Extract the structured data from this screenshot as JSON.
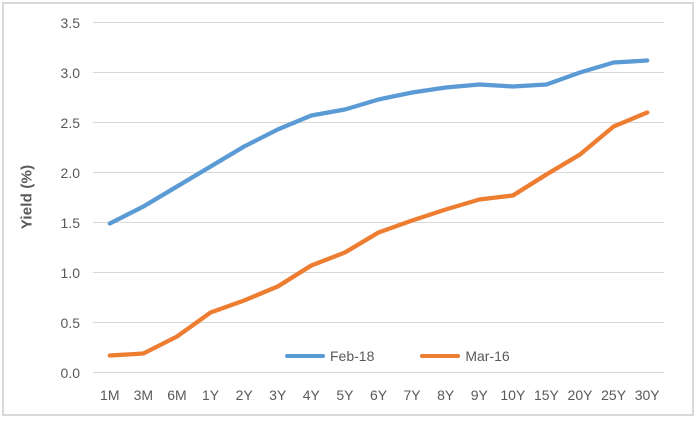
{
  "chart_data": {
    "type": "line",
    "title": "",
    "xlabel": "",
    "ylabel": "Yield (%)",
    "categories": [
      "1M",
      "3M",
      "6M",
      "1Y",
      "2Y",
      "3Y",
      "4Y",
      "5Y",
      "6Y",
      "7Y",
      "8Y",
      "9Y",
      "10Y",
      "15Y",
      "20Y",
      "25Y",
      "30Y"
    ],
    "series": [
      {
        "name": "Feb-18",
        "color": "#5B9BD5",
        "values": [
          1.49,
          1.66,
          1.86,
          2.06,
          2.26,
          2.43,
          2.57,
          2.63,
          2.73,
          2.8,
          2.85,
          2.88,
          2.86,
          2.88,
          3.0,
          3.1,
          3.12
        ]
      },
      {
        "name": "Mar-16",
        "color": "#ED7D31",
        "values": [
          0.17,
          0.19,
          0.36,
          0.6,
          0.72,
          0.86,
          1.07,
          1.2,
          1.4,
          1.52,
          1.63,
          1.73,
          1.77,
          1.98,
          2.18,
          2.46,
          2.6
        ]
      }
    ],
    "ylim": [
      0,
      3.5
    ],
    "ytick_step": 0.5,
    "ytick_labels": [
      "0.0",
      "0.5",
      "1.0",
      "1.5",
      "2.0",
      "2.5",
      "3.0",
      "3.5"
    ],
    "grid": "horizontal",
    "gridline_color": "#D9D9D9",
    "frame_border_color": "#D9D9D9",
    "axis_label_color": "#595959",
    "legend_position": "bottom-inside",
    "legend_entries": [
      "Feb-18",
      "Mar-16"
    ]
  }
}
